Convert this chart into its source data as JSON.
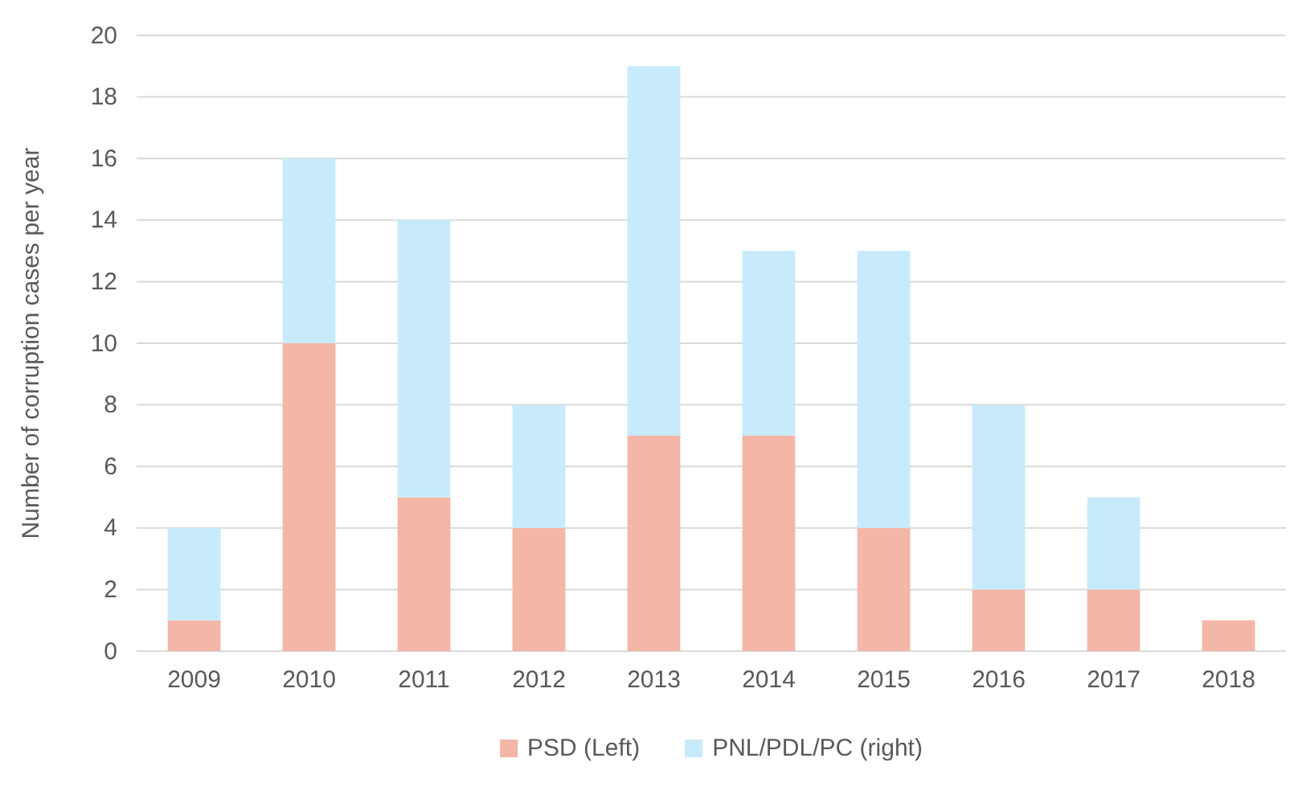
{
  "chart_data": {
    "type": "bar",
    "stacked": true,
    "ylabel": "Number of corruption cases per year",
    "categories": [
      "2009",
      "2010",
      "2011",
      "2012",
      "2013",
      "2014",
      "2015",
      "2016",
      "2017",
      "2018"
    ],
    "series": [
      {
        "name": "PSD (Left)",
        "color": "#f4b6a6",
        "values": [
          1,
          10,
          5,
          4,
          7,
          7,
          4,
          2,
          2,
          1
        ]
      },
      {
        "name": "PNL/PDL/PC (right)",
        "color": "#c7ebfb",
        "values": [
          3,
          6,
          9,
          4,
          12,
          6,
          9,
          6,
          3,
          0
        ]
      }
    ],
    "ylim": [
      0,
      20
    ],
    "yticks": [
      0,
      2,
      4,
      6,
      8,
      10,
      12,
      14,
      16,
      18,
      20
    ],
    "grid": "y",
    "legend": "bottom"
  }
}
